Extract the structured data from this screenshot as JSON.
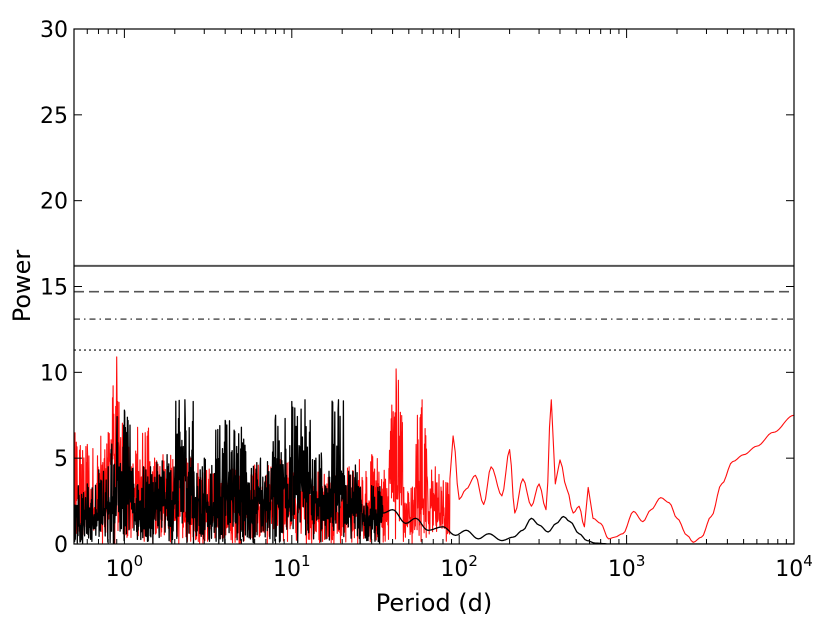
{
  "chart_data": {
    "type": "line",
    "xlabel": "Period (d)",
    "ylabel": "Power",
    "xscale": "log",
    "xlim": [
      0.5,
      10000
    ],
    "ylim": [
      0,
      30
    ],
    "grid": false,
    "x_ticks": [
      {
        "value": 1,
        "base": "10",
        "exp": "0"
      },
      {
        "value": 10,
        "base": "10",
        "exp": "1"
      },
      {
        "value": 100,
        "base": "10",
        "exp": "2"
      },
      {
        "value": 1000,
        "base": "10",
        "exp": "3"
      },
      {
        "value": 10000,
        "base": "10",
        "exp": "4"
      }
    ],
    "y_ticks": [
      "0",
      "5",
      "10",
      "15",
      "20",
      "25",
      "30"
    ],
    "threshold_lines": [
      {
        "style": "solid",
        "y": 16.2
      },
      {
        "style": "dashed",
        "y": 14.7
      },
      {
        "style": "dashdot",
        "y": 13.1
      },
      {
        "style": "dotted",
        "y": 11.3
      }
    ],
    "series": [
      {
        "color": "#ff0000",
        "points": [
          [
            0.5,
            6.5
          ],
          [
            0.55,
            2.5
          ],
          [
            0.6,
            5.8
          ],
          [
            0.7,
            3.2
          ],
          [
            0.8,
            6.5
          ],
          [
            0.9,
            10.9
          ],
          [
            0.95,
            6.2
          ],
          [
            1.0,
            7.2
          ],
          [
            1.1,
            4.5
          ],
          [
            1.2,
            6.8
          ],
          [
            1.4,
            4.0
          ],
          [
            1.7,
            5.2
          ],
          [
            2.0,
            3.5
          ],
          [
            2.5,
            5.0
          ],
          [
            3.0,
            3.8
          ],
          [
            4.0,
            4.5
          ],
          [
            5.0,
            3.2
          ],
          [
            6.0,
            4.6
          ],
          [
            8.0,
            3.6
          ],
          [
            10.0,
            5.0
          ],
          [
            12.0,
            4.0
          ],
          [
            15.0,
            4.4
          ],
          [
            18.0,
            3.5
          ],
          [
            22.0,
            4.5
          ],
          [
            25.0,
            3.7
          ],
          [
            30.0,
            5.2
          ],
          [
            33.0,
            2.5
          ],
          [
            38.0,
            4.4
          ],
          [
            42.0,
            10.2
          ],
          [
            46.0,
            3.5
          ],
          [
            50.0,
            2.2
          ],
          [
            55.0,
            3.5
          ],
          [
            60.0,
            8.4
          ],
          [
            65.0,
            2.5
          ],
          [
            72.0,
            4.5
          ],
          [
            80.0,
            2.5
          ],
          [
            88.0,
            3.8
          ],
          [
            92.0,
            6.3
          ],
          [
            100.0,
            2.6
          ],
          [
            110.0,
            3.2
          ],
          [
            125.0,
            4.0
          ],
          [
            140.0,
            2.3
          ],
          [
            155.0,
            4.5
          ],
          [
            180.0,
            2.8
          ],
          [
            200.0,
            5.5
          ],
          [
            215.0,
            1.8
          ],
          [
            240.0,
            3.8
          ],
          [
            270.0,
            2.2
          ],
          [
            300.0,
            3.5
          ],
          [
            330.0,
            2.0
          ],
          [
            355.0,
            8.4
          ],
          [
            375.0,
            3.5
          ],
          [
            400.0,
            4.9
          ],
          [
            440.0,
            3.2
          ],
          [
            480.0,
            1.8
          ],
          [
            520.0,
            2.2
          ],
          [
            560.0,
            1.0
          ],
          [
            590.0,
            3.3
          ],
          [
            630.0,
            1.5
          ],
          [
            700.0,
            1.2
          ],
          [
            780.0,
            0.3
          ],
          [
            850.0,
            0.4
          ],
          [
            950.0,
            0.6
          ],
          [
            1100.0,
            1.9
          ],
          [
            1250.0,
            1.3
          ],
          [
            1400.0,
            2.0
          ],
          [
            1600.0,
            2.7
          ],
          [
            1800.0,
            2.4
          ],
          [
            2000.0,
            1.5
          ],
          [
            2300.0,
            0.5
          ],
          [
            2500.0,
            0.1
          ],
          [
            2800.0,
            0.4
          ],
          [
            3200.0,
            1.6
          ],
          [
            3700.0,
            3.5
          ],
          [
            4300.0,
            4.8
          ],
          [
            5000.0,
            5.2
          ],
          [
            6000.0,
            5.7
          ],
          [
            7500.0,
            6.5
          ],
          [
            10000.0,
            7.5
          ]
        ]
      },
      {
        "color": "#000000",
        "points": [
          [
            0.5,
            2.2
          ],
          [
            0.6,
            3.5
          ],
          [
            0.7,
            2.0
          ],
          [
            0.8,
            4.5
          ],
          [
            0.9,
            6.3
          ],
          [
            1.0,
            7.8
          ],
          [
            1.1,
            3.8
          ],
          [
            1.3,
            4.5
          ],
          [
            1.5,
            3.0
          ],
          [
            1.8,
            5.2
          ],
          [
            2.0,
            3.8
          ],
          [
            2.3,
            8.4
          ],
          [
            2.6,
            4.2
          ],
          [
            3.0,
            5.0
          ],
          [
            3.5,
            3.6
          ],
          [
            4.0,
            7.2
          ],
          [
            4.5,
            4.0
          ],
          [
            5.0,
            6.8
          ],
          [
            5.5,
            3.5
          ],
          [
            6.5,
            5.0
          ],
          [
            7.5,
            3.2
          ],
          [
            8.0,
            7.5
          ],
          [
            9.0,
            3.6
          ],
          [
            10.0,
            8.3
          ],
          [
            11.0,
            4.5
          ],
          [
            12.0,
            8.4
          ],
          [
            13.0,
            3.7
          ],
          [
            15.0,
            5.3
          ],
          [
            17.0,
            3.2
          ],
          [
            19.0,
            8.4
          ],
          [
            21.0,
            3.4
          ],
          [
            24.0,
            4.6
          ],
          [
            27.0,
            2.2
          ],
          [
            30.0,
            3.4
          ],
          [
            35.0,
            1.8
          ],
          [
            40.0,
            2.0
          ],
          [
            48.0,
            1.2
          ],
          [
            55.0,
            1.5
          ],
          [
            65.0,
            0.8
          ],
          [
            80.0,
            1.0
          ],
          [
            95.0,
            0.5
          ],
          [
            110.0,
            0.8
          ],
          [
            130.0,
            0.3
          ],
          [
            150.0,
            0.6
          ],
          [
            180.0,
            0.2
          ],
          [
            210.0,
            0.4
          ],
          [
            240.0,
            0.8
          ],
          [
            270.0,
            1.5
          ],
          [
            300.0,
            1.1
          ],
          [
            340.0,
            0.7
          ],
          [
            380.0,
            1.2
          ],
          [
            420.0,
            1.6
          ],
          [
            460.0,
            1.3
          ],
          [
            520.0,
            0.6
          ],
          [
            580.0,
            0.2
          ],
          [
            650.0,
            0.05
          ],
          [
            800.0,
            0.0
          ],
          [
            10000.0,
            0.0
          ]
        ]
      }
    ]
  }
}
